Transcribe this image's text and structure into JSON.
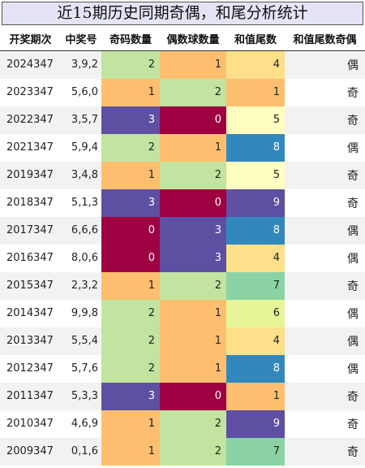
{
  "title": "近15期历史同期奇偶，和尾分析统计",
  "columns": [
    "开奖期次",
    "中奖号",
    "奇码数量",
    "偶数球数量",
    "和值尾数",
    "和值尾数奇偶"
  ],
  "palette": {
    "0": "#9e0142",
    "1": "#fdbf6f",
    "2": "#c2e4a0",
    "3": "#5e4fa2",
    "4": "#fee08b",
    "5": "#ffffbf",
    "6": "#e6f598",
    "7": "#8bd3a5",
    "8": "#3288bd",
    "9": "#5e4fa2"
  },
  "rows": [
    {
      "period": "2024347",
      "numbers": "3,9,2",
      "odd": 2,
      "even": 1,
      "tail": 4,
      "parity": "偶"
    },
    {
      "period": "2023347",
      "numbers": "5,6,0",
      "odd": 1,
      "even": 2,
      "tail": 1,
      "parity": "奇"
    },
    {
      "period": "2022347",
      "numbers": "3,5,7",
      "odd": 3,
      "even": 0,
      "tail": 5,
      "parity": "奇"
    },
    {
      "period": "2021347",
      "numbers": "5,9,4",
      "odd": 2,
      "even": 1,
      "tail": 8,
      "parity": "偶"
    },
    {
      "period": "2019347",
      "numbers": "3,4,8",
      "odd": 1,
      "even": 2,
      "tail": 5,
      "parity": "奇"
    },
    {
      "period": "2018347",
      "numbers": "5,1,3",
      "odd": 3,
      "even": 0,
      "tail": 9,
      "parity": "奇"
    },
    {
      "period": "2017347",
      "numbers": "6,6,6",
      "odd": 0,
      "even": 3,
      "tail": 8,
      "parity": "偶"
    },
    {
      "period": "2016347",
      "numbers": "8,0,6",
      "odd": 0,
      "even": 3,
      "tail": 4,
      "parity": "偶"
    },
    {
      "period": "2015347",
      "numbers": "2,3,2",
      "odd": 1,
      "even": 2,
      "tail": 7,
      "parity": "奇"
    },
    {
      "period": "2014347",
      "numbers": "9,9,8",
      "odd": 2,
      "even": 1,
      "tail": 6,
      "parity": "偶"
    },
    {
      "period": "2013347",
      "numbers": "5,5,4",
      "odd": 2,
      "even": 1,
      "tail": 4,
      "parity": "偶"
    },
    {
      "period": "2012347",
      "numbers": "5,7,6",
      "odd": 2,
      "even": 1,
      "tail": 8,
      "parity": "偶"
    },
    {
      "period": "2011347",
      "numbers": "5,3,3",
      "odd": 3,
      "even": 0,
      "tail": 1,
      "parity": "奇"
    },
    {
      "period": "2010347",
      "numbers": "4,6,9",
      "odd": 1,
      "even": 2,
      "tail": 9,
      "parity": "奇"
    },
    {
      "period": "2009347",
      "numbers": "0,1,6",
      "odd": 1,
      "even": 2,
      "tail": 7,
      "parity": "奇"
    }
  ]
}
